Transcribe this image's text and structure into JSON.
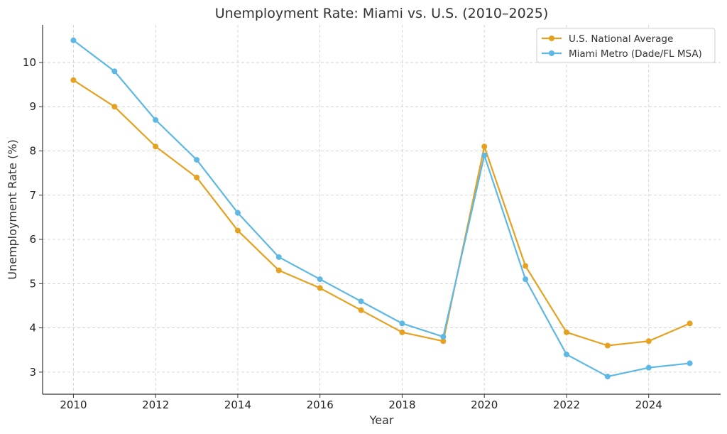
{
  "chart_data": {
    "type": "line",
    "title": "Unemployment Rate: Miami vs. U.S. (2010–2025)",
    "xlabel": "Year",
    "ylabel": "Unemployment Rate (%)",
    "x": [
      2010,
      2011,
      2012,
      2013,
      2014,
      2015,
      2016,
      2017,
      2018,
      2019,
      2020,
      2021,
      2022,
      2023,
      2024,
      2025
    ],
    "xlim": [
      2009.25,
      2025.75
    ],
    "ylim": [
      2.5,
      10.85
    ],
    "xticks": [
      2010,
      2012,
      2014,
      2016,
      2018,
      2020,
      2022,
      2024
    ],
    "yticks": [
      3,
      4,
      5,
      6,
      7,
      8,
      9,
      10
    ],
    "grid": true,
    "legend_position": "top-right",
    "series": [
      {
        "name": "U.S. National Average",
        "color": "#E5A11F",
        "values": [
          9.6,
          9.0,
          8.1,
          7.4,
          6.2,
          5.3,
          4.9,
          4.4,
          3.9,
          3.7,
          8.1,
          5.4,
          3.9,
          3.6,
          3.7,
          4.1
        ]
      },
      {
        "name": "Miami Metro (Dade/FL MSA)",
        "color": "#5DB8E3",
        "values": [
          10.5,
          9.8,
          8.7,
          7.8,
          6.6,
          5.6,
          5.1,
          4.6,
          4.1,
          3.8,
          7.9,
          5.1,
          3.4,
          2.9,
          3.1,
          3.2
        ]
      }
    ]
  }
}
